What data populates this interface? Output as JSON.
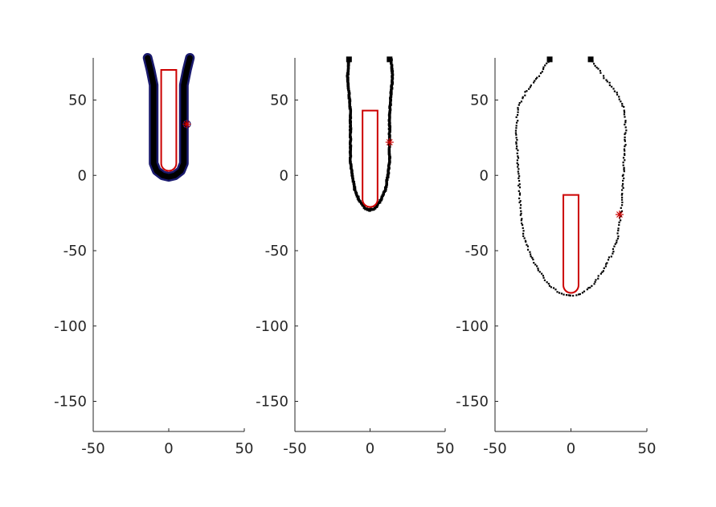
{
  "chart_data": [
    {
      "type": "scatter",
      "title": "",
      "xlabel": "",
      "ylabel": "",
      "xlim": [
        -50,
        50
      ],
      "ylim": [
        -170,
        78
      ],
      "xticks": [
        -50,
        0,
        50
      ],
      "yticks": [
        -150,
        -100,
        -50,
        0,
        50
      ],
      "xticklabels": [
        "-50",
        "0",
        "50"
      ],
      "yticklabels": [
        "-150",
        "-100",
        "-50",
        "0",
        "50"
      ],
      "grid": false,
      "boundary": {
        "style": "thick-blue-outline",
        "left": [
          [
            -14,
            78
          ],
          [
            -12,
            70
          ],
          [
            -10,
            60
          ],
          [
            -10,
            50
          ],
          [
            -10,
            35
          ],
          [
            -10,
            20
          ],
          [
            -10,
            8
          ],
          [
            -8,
            3
          ],
          [
            -4,
            0
          ],
          [
            0,
            -1
          ]
        ],
        "right": [
          [
            14,
            78
          ],
          [
            12,
            70
          ],
          [
            10,
            60
          ],
          [
            10,
            50
          ],
          [
            10,
            35
          ],
          [
            10,
            20
          ],
          [
            10,
            8
          ],
          [
            8,
            3
          ],
          [
            4,
            0
          ],
          [
            0,
            -1
          ]
        ]
      },
      "rectangle": {
        "x_left": -5,
        "x_right": 5,
        "y_top": 70,
        "y_bottom": 3
      },
      "marker": {
        "x": 12,
        "y": 34
      }
    },
    {
      "type": "scatter",
      "title": "",
      "xlabel": "",
      "ylabel": "",
      "xlim": [
        -50,
        50
      ],
      "ylim": [
        -170,
        78
      ],
      "xticks": [
        -50,
        0,
        50
      ],
      "yticks": [
        -150,
        -100,
        -50,
        0,
        50
      ],
      "xticklabels": [
        "-50",
        "0",
        "50"
      ],
      "yticklabels": [
        "-150",
        "-100",
        "-50",
        "0",
        "50"
      ],
      "grid": false,
      "boundary": {
        "style": "dense-black-points",
        "left": [
          [
            -14,
            77
          ],
          [
            -15,
            65
          ],
          [
            -14,
            55
          ],
          [
            -13,
            40
          ],
          [
            -13,
            25
          ],
          [
            -13,
            10
          ],
          [
            -12,
            0
          ],
          [
            -10,
            -10
          ],
          [
            -7,
            -17
          ],
          [
            -3,
            -22
          ],
          [
            0,
            -23
          ]
        ],
        "right": [
          [
            14,
            77
          ],
          [
            15,
            65
          ],
          [
            14,
            55
          ],
          [
            13,
            40
          ],
          [
            13,
            25
          ],
          [
            13,
            10
          ],
          [
            12,
            0
          ],
          [
            10,
            -10
          ],
          [
            7,
            -17
          ],
          [
            3,
            -22
          ],
          [
            0,
            -23
          ]
        ]
      },
      "end_squares": [
        [
          -14,
          77
        ],
        [
          13,
          77
        ]
      ],
      "rectangle": {
        "x_left": -5,
        "x_right": 5,
        "y_top": 43,
        "y_bottom": -21
      },
      "marker": {
        "x": 13,
        "y": 22
      }
    },
    {
      "type": "scatter",
      "title": "",
      "xlabel": "",
      "ylabel": "",
      "xlim": [
        -50,
        50
      ],
      "ylim": [
        -170,
        78
      ],
      "xticks": [
        -50,
        0,
        50
      ],
      "yticks": [
        -150,
        -100,
        -50,
        0,
        50
      ],
      "xticklabels": [
        "-50",
        "0",
        "50"
      ],
      "yticklabels": [
        "-150",
        "-100",
        "-50",
        "0",
        "50"
      ],
      "grid": false,
      "boundary": {
        "style": "sparse-black-points",
        "left": [
          [
            -14,
            77
          ],
          [
            -22,
            65
          ],
          [
            -30,
            55
          ],
          [
            -35,
            45
          ],
          [
            -36,
            30
          ],
          [
            -35,
            10
          ],
          [
            -34,
            -10
          ],
          [
            -33,
            -25
          ],
          [
            -31,
            -40
          ],
          [
            -27,
            -52
          ],
          [
            -22,
            -62
          ],
          [
            -15,
            -72
          ],
          [
            -8,
            -78
          ],
          [
            0,
            -80
          ]
        ],
        "right": [
          [
            13,
            77
          ],
          [
            22,
            65
          ],
          [
            30,
            55
          ],
          [
            35,
            45
          ],
          [
            36,
            30
          ],
          [
            35,
            10
          ],
          [
            34,
            -10
          ],
          [
            33,
            -25
          ],
          [
            31,
            -40
          ],
          [
            27,
            -52
          ],
          [
            22,
            -62
          ],
          [
            15,
            -72
          ],
          [
            8,
            -78
          ],
          [
            0,
            -80
          ]
        ]
      },
      "end_squares": [
        [
          -14,
          77
        ],
        [
          13,
          77
        ]
      ],
      "rectangle": {
        "x_left": -5,
        "x_right": 5,
        "y_top": -13,
        "y_bottom": -78
      },
      "marker": {
        "x": 32,
        "y": -26
      }
    }
  ]
}
